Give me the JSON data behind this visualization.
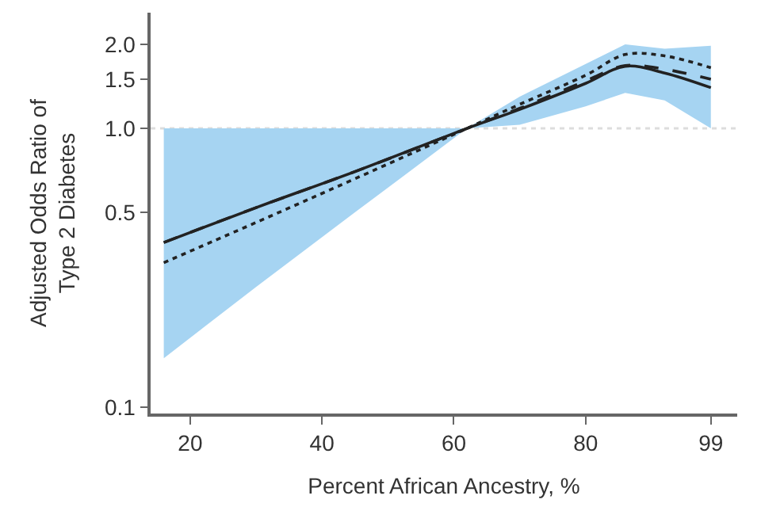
{
  "chart_data": {
    "type": "line",
    "xlabel": "Percent African Ancestry, %",
    "ylabel": "Adjusted Odds Ratio of\nType 2 Diabetes",
    "x": [
      16,
      30,
      45,
      62,
      70,
      80,
      86,
      92,
      99
    ],
    "series": [
      {
        "color": "#222222",
        "line_style": "solid",
        "values": [
          0.39,
          0.52,
          0.7,
          1.0,
          1.17,
          1.45,
          1.67,
          1.58,
          1.4
        ],
        "lower": [
          0.15,
          0.27,
          0.5,
          1.0,
          1.03,
          1.2,
          1.34,
          1.26,
          1.0
        ],
        "upper": [
          1.0,
          1.0,
          1.0,
          1.0,
          1.3,
          1.7,
          2.0,
          1.93,
          1.98
        ]
      },
      {
        "color": "#222222",
        "line_style": "dashed",
        "values": [
          0.39,
          0.52,
          0.7,
          1.0,
          1.18,
          1.48,
          1.68,
          1.63,
          1.5
        ]
      },
      {
        "color": "#222222",
        "line_style": "dotted",
        "values": [
          0.33,
          0.46,
          0.66,
          1.0,
          1.22,
          1.55,
          1.84,
          1.82,
          1.65
        ]
      }
    ],
    "log": "y",
    "xlim": [
      14,
      103
    ],
    "xticks": [
      20,
      40,
      60,
      80,
      99
    ],
    "ylim": [
      0.095,
      2.6
    ],
    "yticks": [
      0.1,
      {
        "value": 0.5,
        "label": "0.5"
      },
      {
        "value": 1.0,
        "label": "1.0"
      },
      1.5,
      {
        "value": 2.0,
        "label": "2.0"
      }
    ],
    "ref_lines": [
      {
        "axis": "y",
        "value": 1.0,
        "color": "#dddddd",
        "line_style": "dotted"
      }
    ],
    "grid": false
  }
}
